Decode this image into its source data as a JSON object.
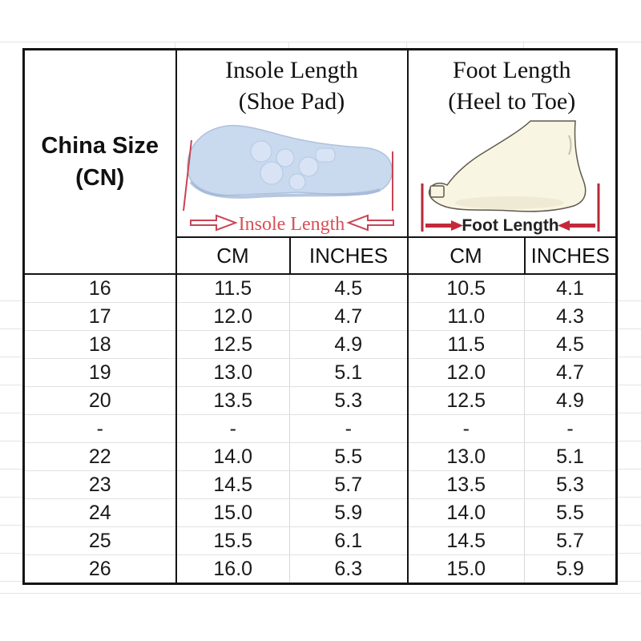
{
  "table": {
    "corner": {
      "title_line1": "China Size",
      "title_line2": "(CN)"
    },
    "insole": {
      "title_line1": "Insole Length",
      "title_line2": "(Shoe Pad)",
      "caption": "Insole Length"
    },
    "foot": {
      "title_line1": "Foot Length",
      "title_line2": "(Heel to Toe)",
      "caption": "Foot Length"
    },
    "units": {
      "insole_cm": "CM",
      "insole_in": "INCHES",
      "foot_cm": "CM",
      "foot_in": "INCHES"
    },
    "rows": [
      {
        "cn": "16",
        "insole_cm": "11.5",
        "insole_in": "4.5",
        "foot_cm": "10.5",
        "foot_in": "4.1"
      },
      {
        "cn": "17",
        "insole_cm": "12.0",
        "insole_in": "4.7",
        "foot_cm": "11.0",
        "foot_in": "4.3"
      },
      {
        "cn": "18",
        "insole_cm": "12.5",
        "insole_in": "4.9",
        "foot_cm": "11.5",
        "foot_in": "4.5"
      },
      {
        "cn": "19",
        "insole_cm": "13.0",
        "insole_in": "5.1",
        "foot_cm": "12.0",
        "foot_in": "4.7"
      },
      {
        "cn": "20",
        "insole_cm": "13.5",
        "insole_in": "5.3",
        "foot_cm": "12.5",
        "foot_in": "4.9"
      },
      {
        "cn": "-",
        "insole_cm": "-",
        "insole_in": "-",
        "foot_cm": "-",
        "foot_in": "-"
      },
      {
        "cn": "22",
        "insole_cm": "14.0",
        "insole_in": "5.5",
        "foot_cm": "13.0",
        "foot_in": "5.1"
      },
      {
        "cn": "23",
        "insole_cm": "14.5",
        "insole_in": "5.7",
        "foot_cm": "13.5",
        "foot_in": "5.3"
      },
      {
        "cn": "24",
        "insole_cm": "15.0",
        "insole_in": "5.9",
        "foot_cm": "14.0",
        "foot_in": "5.5"
      },
      {
        "cn": "25",
        "insole_cm": "15.5",
        "insole_in": "6.1",
        "foot_cm": "14.5",
        "foot_in": "5.7"
      },
      {
        "cn": "26",
        "insole_cm": "16.0",
        "insole_in": "6.3",
        "foot_cm": "15.0",
        "foot_in": "5.9"
      }
    ]
  },
  "colors": {
    "border_dark": "#141414",
    "grid_light": "#e4e4e4",
    "insole_fill": "#c9d9ee",
    "insole_edge": "#9fb4d4",
    "foot_fill": "#f8f5e2",
    "foot_outline": "#5f594e",
    "measure_red": "#c84455",
    "caption_red": "#d94f55",
    "foot_label_dark": "#222222"
  },
  "chart_data": {
    "type": "table",
    "title": "China Size (CN) children shoe size chart",
    "columns": [
      "China Size (CN)",
      "Insole Length (Shoe Pad) CM",
      "Insole Length (Shoe Pad) INCHES",
      "Foot Length (Heel to Toe) CM",
      "Foot Length (Heel to Toe) INCHES"
    ],
    "rows": [
      [
        "16",
        "11.5",
        "4.5",
        "10.5",
        "4.1"
      ],
      [
        "17",
        "12.0",
        "4.7",
        "11.0",
        "4.3"
      ],
      [
        "18",
        "12.5",
        "4.9",
        "11.5",
        "4.5"
      ],
      [
        "19",
        "13.0",
        "5.1",
        "12.0",
        "4.7"
      ],
      [
        "20",
        "13.5",
        "5.3",
        "12.5",
        "4.9"
      ],
      [
        "-",
        "-",
        "-",
        "-",
        "-"
      ],
      [
        "22",
        "14.0",
        "5.5",
        "13.0",
        "5.1"
      ],
      [
        "23",
        "14.5",
        "5.7",
        "13.5",
        "5.3"
      ],
      [
        "24",
        "15.0",
        "5.9",
        "14.0",
        "5.5"
      ],
      [
        "25",
        "15.5",
        "6.1",
        "14.5",
        "5.7"
      ],
      [
        "26",
        "16.0",
        "6.3",
        "15.0",
        "5.9"
      ]
    ]
  }
}
